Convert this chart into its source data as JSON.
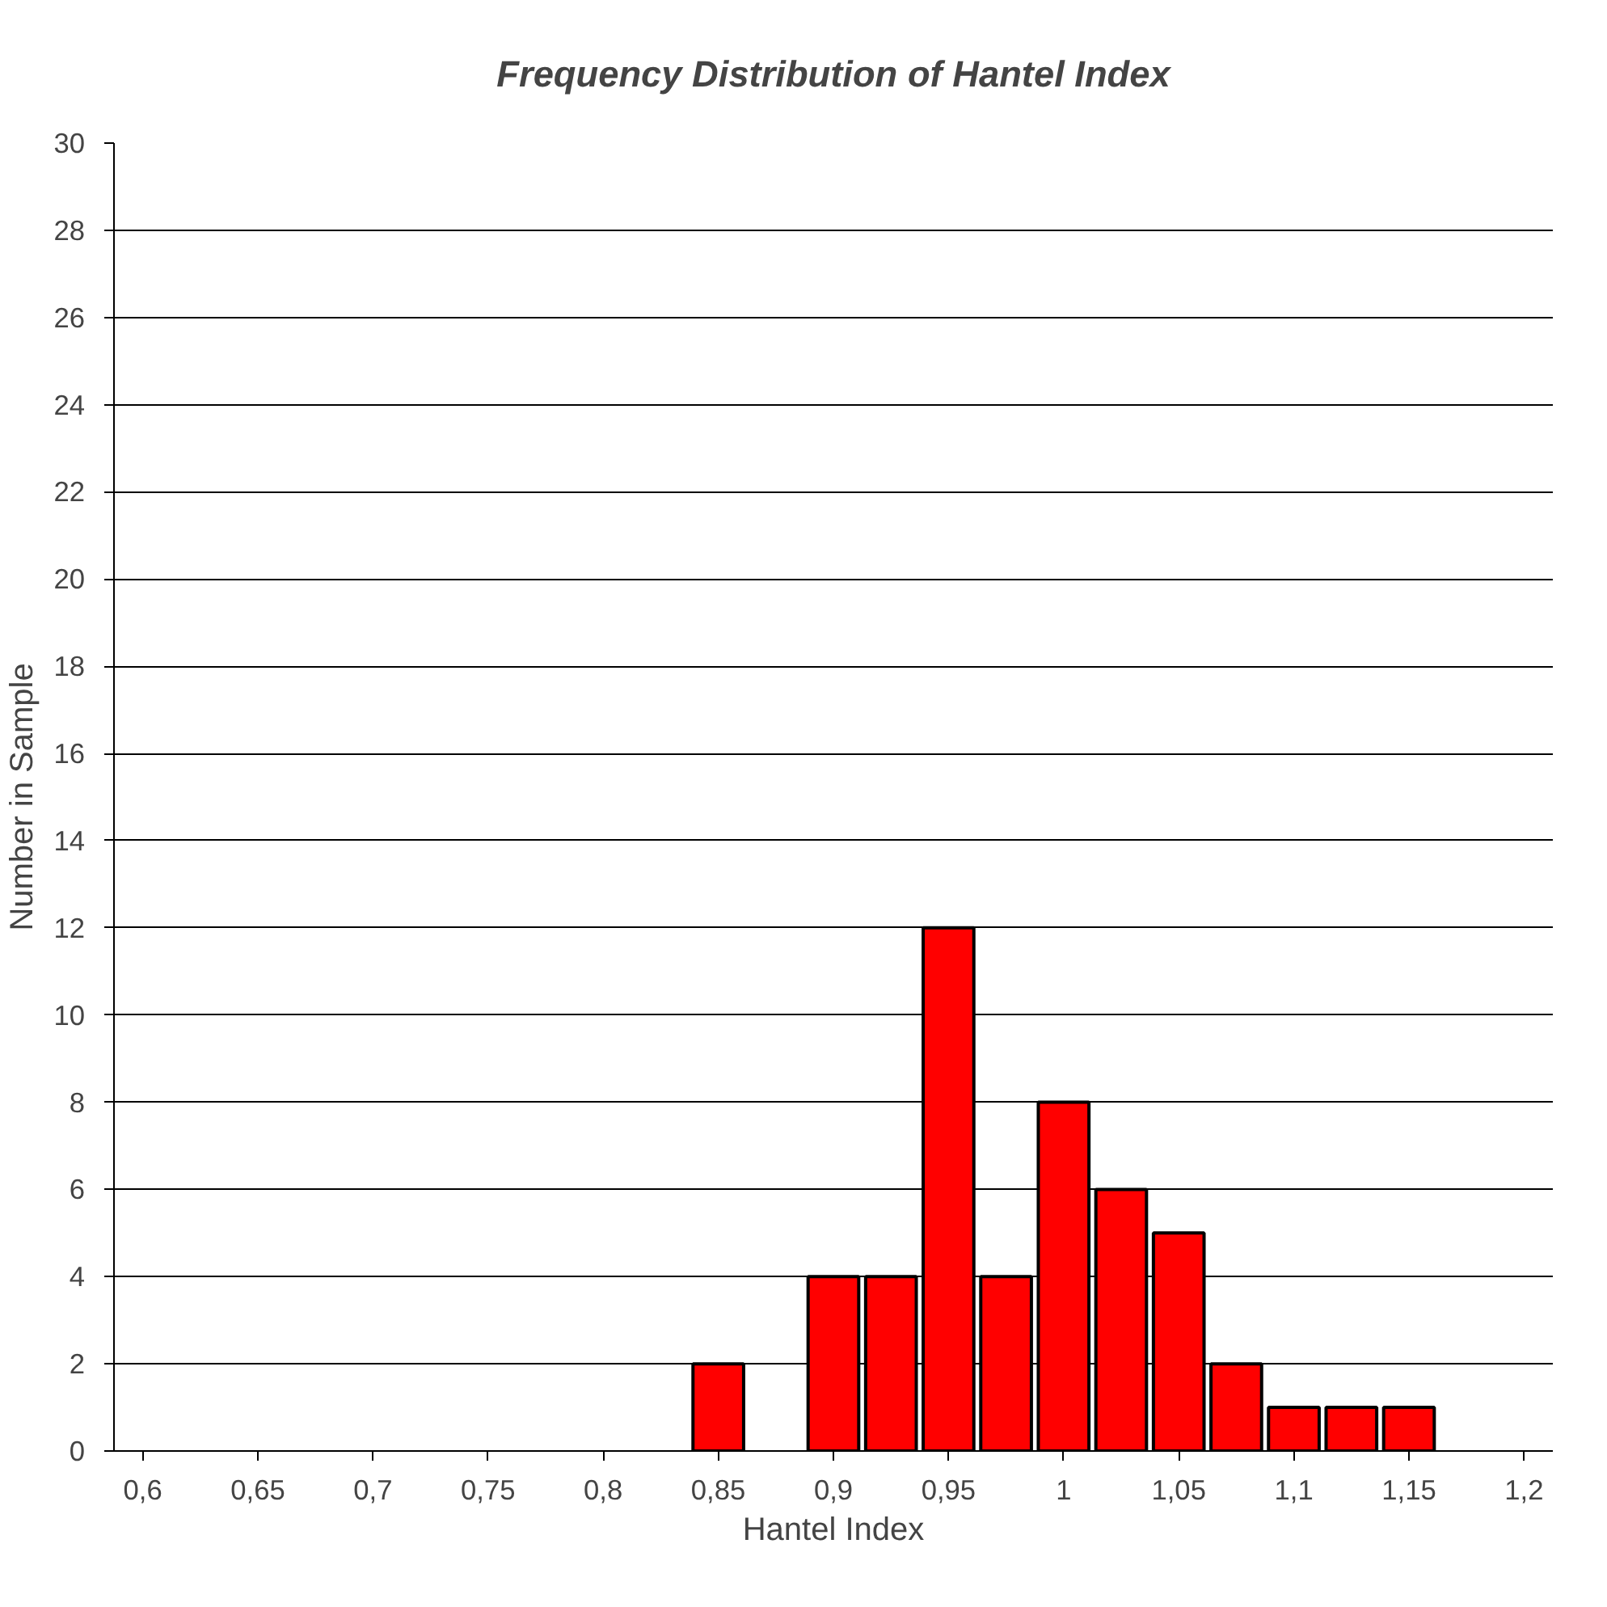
{
  "chart_data": {
    "type": "bar",
    "title": "Frequency Distribution of Hantel Index",
    "xlabel": "Hantel Index",
    "ylabel": "Number in Sample",
    "categories": [
      "0,6",
      null,
      "0,65",
      null,
      "0,7",
      null,
      "0,75",
      null,
      "0,8",
      null,
      "0,85",
      null,
      "0,9",
      null,
      "0,95",
      null,
      "1",
      null,
      "1,05",
      null,
      "1,1",
      null,
      "1,15",
      null,
      "1,2"
    ],
    "values": [
      null,
      null,
      null,
      null,
      null,
      null,
      null,
      null,
      null,
      null,
      2,
      null,
      4,
      4,
      12,
      4,
      8,
      6,
      5,
      2,
      1,
      1,
      1,
      null,
      null
    ],
    "color": "#ff0000",
    "ylim": [
      0,
      30
    ],
    "yticks": [
      0,
      2,
      4,
      6,
      8,
      10,
      12,
      14,
      16,
      18,
      20,
      22,
      24,
      26,
      28,
      30
    ],
    "grid": "y"
  }
}
